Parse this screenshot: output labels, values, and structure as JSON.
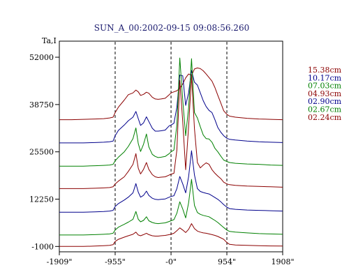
{
  "chart_data": {
    "type": "line",
    "title": "SUN_A_00:2002-09-15 09:08:56.260",
    "ylabel": "Ta,I",
    "xlabel": "",
    "xlim": [
      -1909,
      1908
    ],
    "ylim": [
      -2500,
      56500
    ],
    "x_tick_labels": [
      "-1909\"",
      "-955\"",
      "-0\"",
      "954\"",
      "1908\""
    ],
    "x_tick_values": [
      -1909,
      -955,
      0,
      954,
      1908
    ],
    "y_tick_labels": [
      "52000",
      "38750",
      "25500",
      "12250",
      "-1000"
    ],
    "y_tick_values": [
      52000,
      38750,
      25500,
      12250,
      -1000
    ],
    "dashed_vlines": [
      -955,
      0,
      954
    ],
    "grid": false,
    "legend_position": "right",
    "series": [
      {
        "name": "15.38cm",
        "color": "#8b0000",
        "x": [
          -1909,
          -1700,
          -1500,
          -1300,
          -1150,
          -1050,
          -990,
          -955,
          -900,
          -800,
          -730,
          -650,
          -600,
          -560,
          -520,
          -470,
          -420,
          -380,
          -320,
          -270,
          -220,
          -170,
          -100,
          -30,
          0,
          50,
          100,
          150,
          200,
          250,
          300,
          350,
          400,
          450,
          500,
          550,
          600,
          650,
          700,
          750,
          800,
          850,
          900,
          954,
          1000,
          1100,
          1300,
          1500,
          1700,
          1908
        ],
        "y": [
          34500,
          34500,
          34600,
          34700,
          34800,
          35000,
          35200,
          36500,
          38000,
          40000,
          41500,
          42000,
          42800,
          42300,
          41300,
          41600,
          42200,
          41900,
          40800,
          40300,
          40200,
          40300,
          40500,
          41500,
          42000,
          42300,
          42600,
          43300,
          44500,
          46200,
          47300,
          46900,
          48700,
          49000,
          48800,
          48200,
          47300,
          46300,
          45300,
          43500,
          41300,
          39200,
          37000,
          36000,
          35500,
          35200,
          34900,
          34700,
          34600,
          34500
        ]
      },
      {
        "name": "10.17cm",
        "color": "#00008b",
        "x": [
          -1909,
          -1700,
          -1500,
          -1300,
          -1150,
          -1050,
          -990,
          -955,
          -900,
          -800,
          -730,
          -650,
          -600,
          -560,
          -520,
          -470,
          -420,
          -380,
          -320,
          -270,
          -220,
          -170,
          -100,
          -30,
          0,
          50,
          100,
          150,
          200,
          250,
          300,
          350,
          400,
          450,
          500,
          550,
          600,
          650,
          700,
          750,
          800,
          850,
          900,
          954,
          1000,
          1100,
          1300,
          1500,
          1700,
          1908
        ],
        "y": [
          28000,
          28000,
          28000,
          28100,
          28200,
          28300,
          28500,
          30000,
          31500,
          33000,
          34200,
          35200,
          36800,
          34800,
          32900,
          33600,
          35300,
          34000,
          32100,
          31300,
          31300,
          31400,
          31600,
          32800,
          33000,
          33500,
          38000,
          47000,
          46800,
          38500,
          42000,
          48300,
          45000,
          44200,
          42000,
          39800,
          38200,
          37100,
          36500,
          34500,
          32300,
          31000,
          30000,
          29300,
          29000,
          28800,
          28500,
          28300,
          28200,
          28100
        ]
      },
      {
        "name": "07.03cm",
        "color": "#008000",
        "x": [
          -1909,
          -1700,
          -1500,
          -1300,
          -1150,
          -1050,
          -990,
          -955,
          -900,
          -800,
          -730,
          -650,
          -600,
          -560,
          -520,
          -470,
          -420,
          -380,
          -320,
          -270,
          -220,
          -170,
          -100,
          -30,
          0,
          50,
          100,
          150,
          200,
          250,
          300,
          350,
          400,
          450,
          500,
          550,
          600,
          650,
          700,
          750,
          800,
          850,
          900,
          954,
          1000,
          1100,
          1300,
          1500,
          1700,
          1908
        ],
        "y": [
          21500,
          21500,
          21500,
          21600,
          21700,
          21800,
          22000,
          23000,
          24000,
          25500,
          27000,
          29200,
          32200,
          27800,
          25600,
          27600,
          30500,
          26900,
          24800,
          24200,
          23900,
          24000,
          24200,
          25000,
          25500,
          26000,
          33000,
          51800,
          40000,
          30000,
          37800,
          51600,
          36500,
          35000,
          32500,
          30200,
          29200,
          29100,
          28200,
          26500,
          25500,
          24300,
          23200,
          22800,
          22500,
          22300,
          22100,
          22000,
          21800,
          21700
        ]
      },
      {
        "name": "04.93cm",
        "color": "#8b0000",
        "x": [
          -1909,
          -1700,
          -1500,
          -1300,
          -1150,
          -1050,
          -990,
          -955,
          -900,
          -800,
          -730,
          -650,
          -600,
          -560,
          -520,
          -470,
          -420,
          -380,
          -320,
          -270,
          -220,
          -170,
          -100,
          -30,
          0,
          50,
          100,
          150,
          200,
          250,
          300,
          350,
          400,
          450,
          500,
          550,
          600,
          650,
          700,
          750,
          800,
          850,
          900,
          954,
          1000,
          1100,
          1300,
          1500,
          1700,
          1908
        ],
        "y": [
          15200,
          15200,
          15200,
          15300,
          15400,
          15500,
          15700,
          16500,
          17300,
          18500,
          20000,
          22000,
          25000,
          20900,
          19300,
          20600,
          22500,
          20600,
          19100,
          18500,
          18300,
          18400,
          18500,
          19000,
          19200,
          19500,
          26000,
          45500,
          34000,
          20500,
          32500,
          46800,
          32000,
          22500,
          21000,
          21800,
          22400,
          22000,
          20500,
          19500,
          18700,
          18000,
          17000,
          16500,
          16300,
          16100,
          15900,
          15800,
          15700,
          15600
        ]
      },
      {
        "name": "02.90cm",
        "color": "#00008b",
        "x": [
          -1909,
          -1700,
          -1500,
          -1300,
          -1150,
          -1050,
          -990,
          -955,
          -900,
          -800,
          -730,
          -650,
          -600,
          -560,
          -520,
          -470,
          -420,
          -380,
          -320,
          -270,
          -220,
          -170,
          -100,
          -30,
          0,
          50,
          100,
          150,
          200,
          250,
          300,
          350,
          400,
          450,
          500,
          550,
          600,
          650,
          700,
          750,
          800,
          850,
          900,
          954,
          1000,
          1100,
          1300,
          1500,
          1700,
          1908
        ],
        "y": [
          8600,
          8600,
          8600,
          8700,
          8800,
          8900,
          9100,
          10200,
          11000,
          12000,
          12800,
          14000,
          16600,
          14200,
          12800,
          13300,
          14500,
          13300,
          12500,
          12200,
          12100,
          12200,
          12300,
          12800,
          13000,
          13200,
          15200,
          18600,
          16500,
          14000,
          18500,
          25800,
          19000,
          15200,
          14400,
          14100,
          13900,
          13700,
          13200,
          12700,
          12200,
          11500,
          10700,
          10000,
          9600,
          9400,
          9200,
          9100,
          9000,
          8900
        ]
      },
      {
        "name": "02.67cm",
        "color": "#008000",
        "x": [
          -1909,
          -1700,
          -1500,
          -1300,
          -1150,
          -1050,
          -990,
          -955,
          -900,
          -800,
          -730,
          -650,
          -600,
          -560,
          -520,
          -470,
          -420,
          -380,
          -320,
          -270,
          -220,
          -170,
          -100,
          -30,
          0,
          50,
          100,
          150,
          200,
          250,
          300,
          350,
          400,
          450,
          500,
          550,
          600,
          650,
          700,
          750,
          800,
          850,
          900,
          954,
          1000,
          1100,
          1300,
          1500,
          1700,
          1908
        ],
        "y": [
          2200,
          2200,
          2200,
          2300,
          2400,
          2500,
          2700,
          3600,
          4400,
          5200,
          5800,
          6600,
          8800,
          6600,
          5900,
          6300,
          7300,
          6200,
          5700,
          5500,
          5400,
          5500,
          5600,
          6000,
          6200,
          6500,
          8300,
          11500,
          9500,
          7000,
          11200,
          17800,
          10500,
          8500,
          8000,
          7700,
          7500,
          7300,
          6800,
          6300,
          5700,
          5000,
          4300,
          3600,
          3200,
          3000,
          2800,
          2600,
          2500,
          2400
        ]
      },
      {
        "name": "02.24cm",
        "color": "#8b0000",
        "x": [
          -1909,
          -1700,
          -1500,
          -1300,
          -1150,
          -1050,
          -990,
          -955,
          -900,
          -800,
          -730,
          -650,
          -600,
          -560,
          -520,
          -470,
          -420,
          -380,
          -320,
          -270,
          -220,
          -170,
          -100,
          -30,
          0,
          50,
          100,
          150,
          200,
          250,
          300,
          350,
          400,
          450,
          500,
          550,
          600,
          650,
          700,
          750,
          800,
          850,
          900,
          954,
          1000,
          1100,
          1300,
          1500,
          1700,
          1908
        ],
        "y": [
          -1000,
          -1000,
          -1000,
          -900,
          -800,
          -700,
          -500,
          400,
          1000,
          1600,
          2000,
          2400,
          3000,
          2200,
          2000,
          2300,
          2700,
          2300,
          2000,
          1900,
          1900,
          2000,
          2100,
          2300,
          2400,
          2700,
          3400,
          4200,
          3600,
          2900,
          3800,
          5400,
          4000,
          3300,
          3000,
          2800,
          2700,
          2500,
          2300,
          2100,
          1800,
          1400,
          1000,
          100,
          -400,
          -600,
          -700,
          -800,
          -850,
          -900
        ]
      }
    ]
  }
}
